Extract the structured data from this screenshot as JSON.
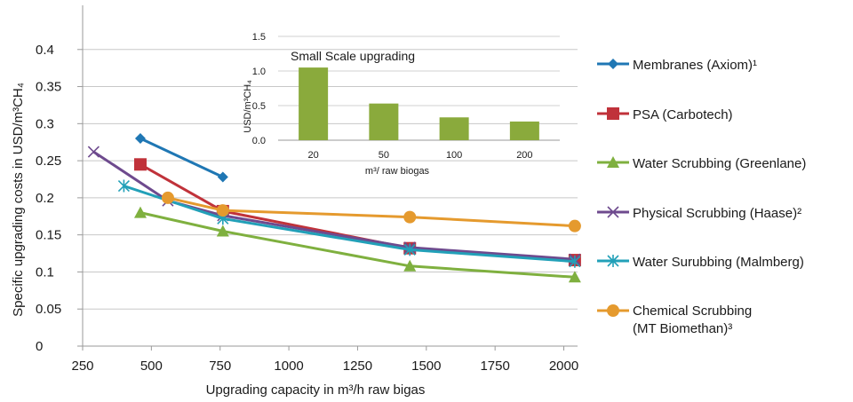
{
  "chart_data": [
    {
      "type": "line",
      "title": "",
      "xlabel": "Upgrading capacity in m³/h raw bigas",
      "ylabel": "Specific upgrading costs in USD/m³CH₄",
      "xlim": [
        250,
        2050
      ],
      "ylim": [
        0,
        0.45
      ],
      "x_ticks": [
        "250",
        "500",
        "750",
        "1000",
        "1250",
        "1500",
        "1750",
        "2000"
      ],
      "y_ticks": [
        "0",
        "0.05",
        "0.1",
        "0.15",
        "0.2",
        "0.25",
        "0.3",
        "0.35",
        "0.4"
      ],
      "grid": "horizontal",
      "legend_position": "right",
      "series": [
        {
          "name": "Membranes (Axiom)¹",
          "color": "#1f77b4",
          "marker": "diamond",
          "points": [
            [
              460,
              0.28
            ],
            [
              760,
              0.228
            ]
          ]
        },
        {
          "name": "PSA (Carbotech)",
          "color": "#c0323a",
          "marker": "square",
          "points": [
            [
              460,
              0.245
            ],
            [
              760,
              0.182
            ],
            [
              1440,
              0.132
            ],
            [
              2040,
              0.116
            ]
          ]
        },
        {
          "name": "Water Scrubbing (Greenlane)",
          "color": "#7fb03f",
          "marker": "triangle",
          "points": [
            [
              460,
              0.18
            ],
            [
              760,
              0.155
            ],
            [
              1440,
              0.108
            ],
            [
              2040,
              0.093
            ]
          ]
        },
        {
          "name": "Physical Scrubbing (Haase)²",
          "color": "#6e4a8e",
          "marker": "x",
          "points": [
            [
              290,
              0.262
            ],
            [
              560,
              0.196
            ],
            [
              760,
              0.176
            ],
            [
              1440,
              0.133
            ],
            [
              2040,
              0.117
            ]
          ]
        },
        {
          "name": "Water Surubbing (Malmberg)",
          "color": "#22a0b8",
          "marker": "star",
          "points": [
            [
              400,
              0.216
            ],
            [
              760,
              0.172
            ],
            [
              1440,
              0.13
            ],
            [
              2040,
              0.114
            ]
          ]
        },
        {
          "name": "Chemical Scrubbing (MT Biomethan)³",
          "color": "#e59a2e",
          "marker": "circle",
          "points": [
            [
              560,
              0.2
            ],
            [
              760,
              0.183
            ],
            [
              1440,
              0.174
            ],
            [
              2040,
              0.162
            ]
          ]
        }
      ]
    },
    {
      "type": "bar",
      "title": "Small Scale upgrading",
      "xlabel": "m³/ raw biogas",
      "ylabel": "USD/m³CH₄",
      "categories": [
        "20",
        "50",
        "100",
        "200"
      ],
      "values": [
        1.05,
        0.53,
        0.33,
        0.27
      ],
      "ylim": [
        0,
        1.5
      ],
      "y_ticks": [
        "0.0",
        "0.5",
        "1.0",
        "1.5"
      ],
      "color": "#8aaa3c",
      "grid": "horizontal"
    }
  ],
  "legend": {
    "items": [
      {
        "label": "Membranes (Axiom)¹"
      },
      {
        "label": "PSA (Carbotech)"
      },
      {
        "label": "Water Scrubbing (Greenlane)"
      },
      {
        "label": "Physical Scrubbing (Haase)²"
      },
      {
        "label": "Water Surubbing (Malmberg)"
      },
      {
        "label_line1": "Chemical Scrubbing",
        "label_line2": "(MT Biomethan)³"
      }
    ]
  }
}
